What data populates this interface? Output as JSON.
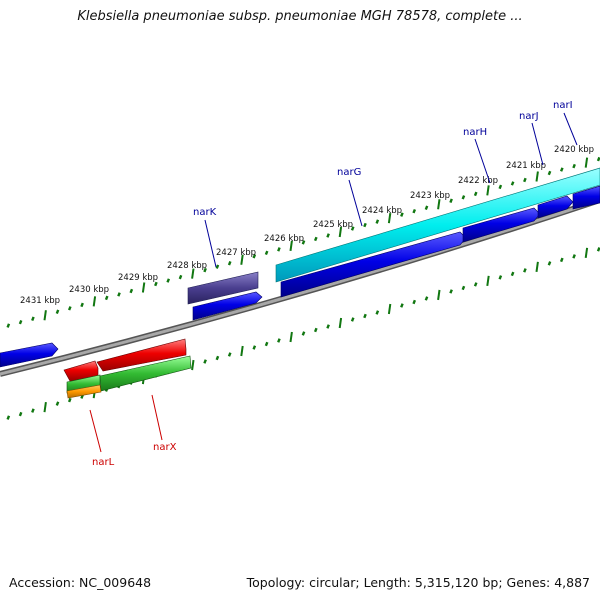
{
  "header": {
    "title": "Klebsiella pneumoniae subsp. pneumoniae MGH 78578, complete ..."
  },
  "footer": {
    "accession": "Accession: NC_009648",
    "summary": "Topology: circular; Length: 5,315,120 bp; Genes: 4,887"
  },
  "scale_labels": [
    "2420 kbp",
    "2421 kbp",
    "2422 kbp",
    "2423 kbp",
    "2424 kbp",
    "2425 kbp",
    "2426 kbp",
    "2427 kbp",
    "2428 kbp",
    "2429 kbp",
    "2430 kbp",
    "2431 kbp"
  ],
  "genes_top": [
    {
      "name": "narI",
      "color": "#000099"
    },
    {
      "name": "narJ",
      "color": "#000099"
    },
    {
      "name": "narH",
      "color": "#000099"
    },
    {
      "name": "narG",
      "color": "#000099"
    },
    {
      "name": "narK",
      "color": "#000099"
    }
  ],
  "genes_bottom": [
    {
      "name": "narL",
      "color": "#cc0000"
    },
    {
      "name": "narX",
      "color": "#cc0000"
    }
  ],
  "colors": {
    "cds_blue": "#0000e0",
    "cyan_track": "#00e0e8",
    "purple_track": "#4a3f8f",
    "red_track": "#ee0000",
    "green_track": "#33bb33",
    "orange_track": "#ff9900",
    "backbone": "#888888",
    "ticks": "#117711"
  }
}
